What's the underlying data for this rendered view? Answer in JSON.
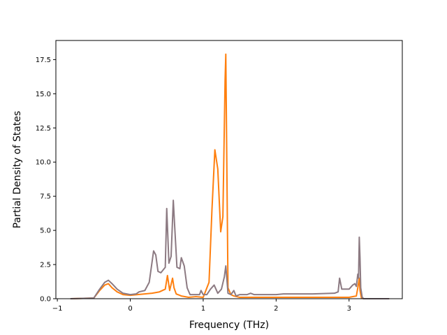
{
  "chart_data": {
    "type": "line",
    "title": "",
    "xlabel": "Frequency (THz)",
    "ylabel": "Partial Density of States",
    "xlim": [
      -1.02,
      3.73
    ],
    "ylim": [
      0.0,
      18.9
    ],
    "xticks": [
      -1,
      0,
      1,
      2,
      3
    ],
    "xtick_labels": [
      "−1",
      "0",
      "1",
      "2",
      "3"
    ],
    "yticks": [
      0.0,
      2.5,
      5.0,
      7.5,
      10.0,
      12.5,
      15.0,
      17.5
    ],
    "ytick_labels": [
      "0.0",
      "2.5",
      "5.0",
      "7.5",
      "10.0",
      "12.5",
      "15.0",
      "17.5"
    ],
    "grid": false,
    "legend": "none",
    "series": [
      {
        "color": "#ff7f0e",
        "x": [
          -0.82,
          -0.5,
          -0.42,
          -0.35,
          -0.3,
          -0.25,
          -0.18,
          -0.1,
          0.0,
          0.1,
          0.2,
          0.3,
          0.4,
          0.48,
          0.51,
          0.54,
          0.58,
          0.6,
          0.63,
          0.7,
          0.8,
          0.9,
          1.0,
          1.08,
          1.12,
          1.16,
          1.2,
          1.24,
          1.27,
          1.3,
          1.31,
          1.34,
          1.38,
          1.42,
          1.46,
          1.5,
          2.0,
          2.5,
          2.85,
          2.88,
          2.92,
          3.0,
          3.1,
          3.12,
          3.14,
          3.15,
          3.17,
          3.2,
          3.55
        ],
        "y": [
          0.0,
          0.05,
          0.6,
          1.0,
          1.1,
          0.8,
          0.5,
          0.3,
          0.25,
          0.3,
          0.35,
          0.4,
          0.5,
          0.7,
          1.7,
          0.6,
          1.5,
          0.8,
          0.35,
          0.2,
          0.1,
          0.15,
          0.1,
          1.2,
          6.5,
          10.9,
          9.5,
          4.9,
          6.0,
          16.0,
          17.9,
          0.8,
          0.3,
          0.2,
          0.15,
          0.1,
          0.1,
          0.1,
          0.1,
          0.1,
          0.1,
          0.1,
          0.2,
          0.8,
          1.5,
          0.6,
          0.05,
          0.0,
          0.0
        ]
      },
      {
        "color": "#8c7a82",
        "x": [
          -0.82,
          -0.5,
          -0.42,
          -0.35,
          -0.3,
          -0.25,
          -0.18,
          -0.1,
          0.0,
          0.08,
          0.12,
          0.2,
          0.26,
          0.32,
          0.35,
          0.38,
          0.42,
          0.48,
          0.5,
          0.53,
          0.56,
          0.59,
          0.61,
          0.64,
          0.68,
          0.7,
          0.74,
          0.78,
          0.82,
          0.9,
          0.95,
          0.97,
          1.0,
          1.05,
          1.1,
          1.15,
          1.2,
          1.25,
          1.29,
          1.31,
          1.34,
          1.38,
          1.42,
          1.45,
          1.5,
          1.6,
          1.65,
          1.7,
          2.0,
          2.1,
          2.5,
          2.8,
          2.85,
          2.87,
          2.9,
          3.0,
          3.05,
          3.08,
          3.1,
          3.12,
          3.13,
          3.14,
          3.15,
          3.16,
          3.18,
          3.2,
          3.55
        ],
        "y": [
          0.0,
          0.05,
          0.7,
          1.2,
          1.35,
          1.1,
          0.7,
          0.4,
          0.3,
          0.35,
          0.5,
          0.6,
          1.2,
          3.5,
          3.2,
          2.0,
          1.9,
          2.3,
          6.6,
          2.6,
          3.1,
          7.2,
          5.2,
          2.3,
          2.2,
          3.0,
          2.4,
          0.8,
          0.3,
          0.3,
          0.3,
          0.6,
          0.3,
          0.3,
          0.7,
          1.0,
          0.4,
          0.7,
          1.6,
          2.4,
          0.4,
          0.3,
          0.6,
          0.2,
          0.3,
          0.3,
          0.4,
          0.3,
          0.3,
          0.35,
          0.35,
          0.4,
          0.5,
          1.5,
          0.7,
          0.7,
          1.0,
          1.1,
          0.9,
          1.8,
          1.5,
          4.5,
          3.0,
          0.8,
          0.1,
          0.0,
          0.0
        ]
      }
    ]
  }
}
